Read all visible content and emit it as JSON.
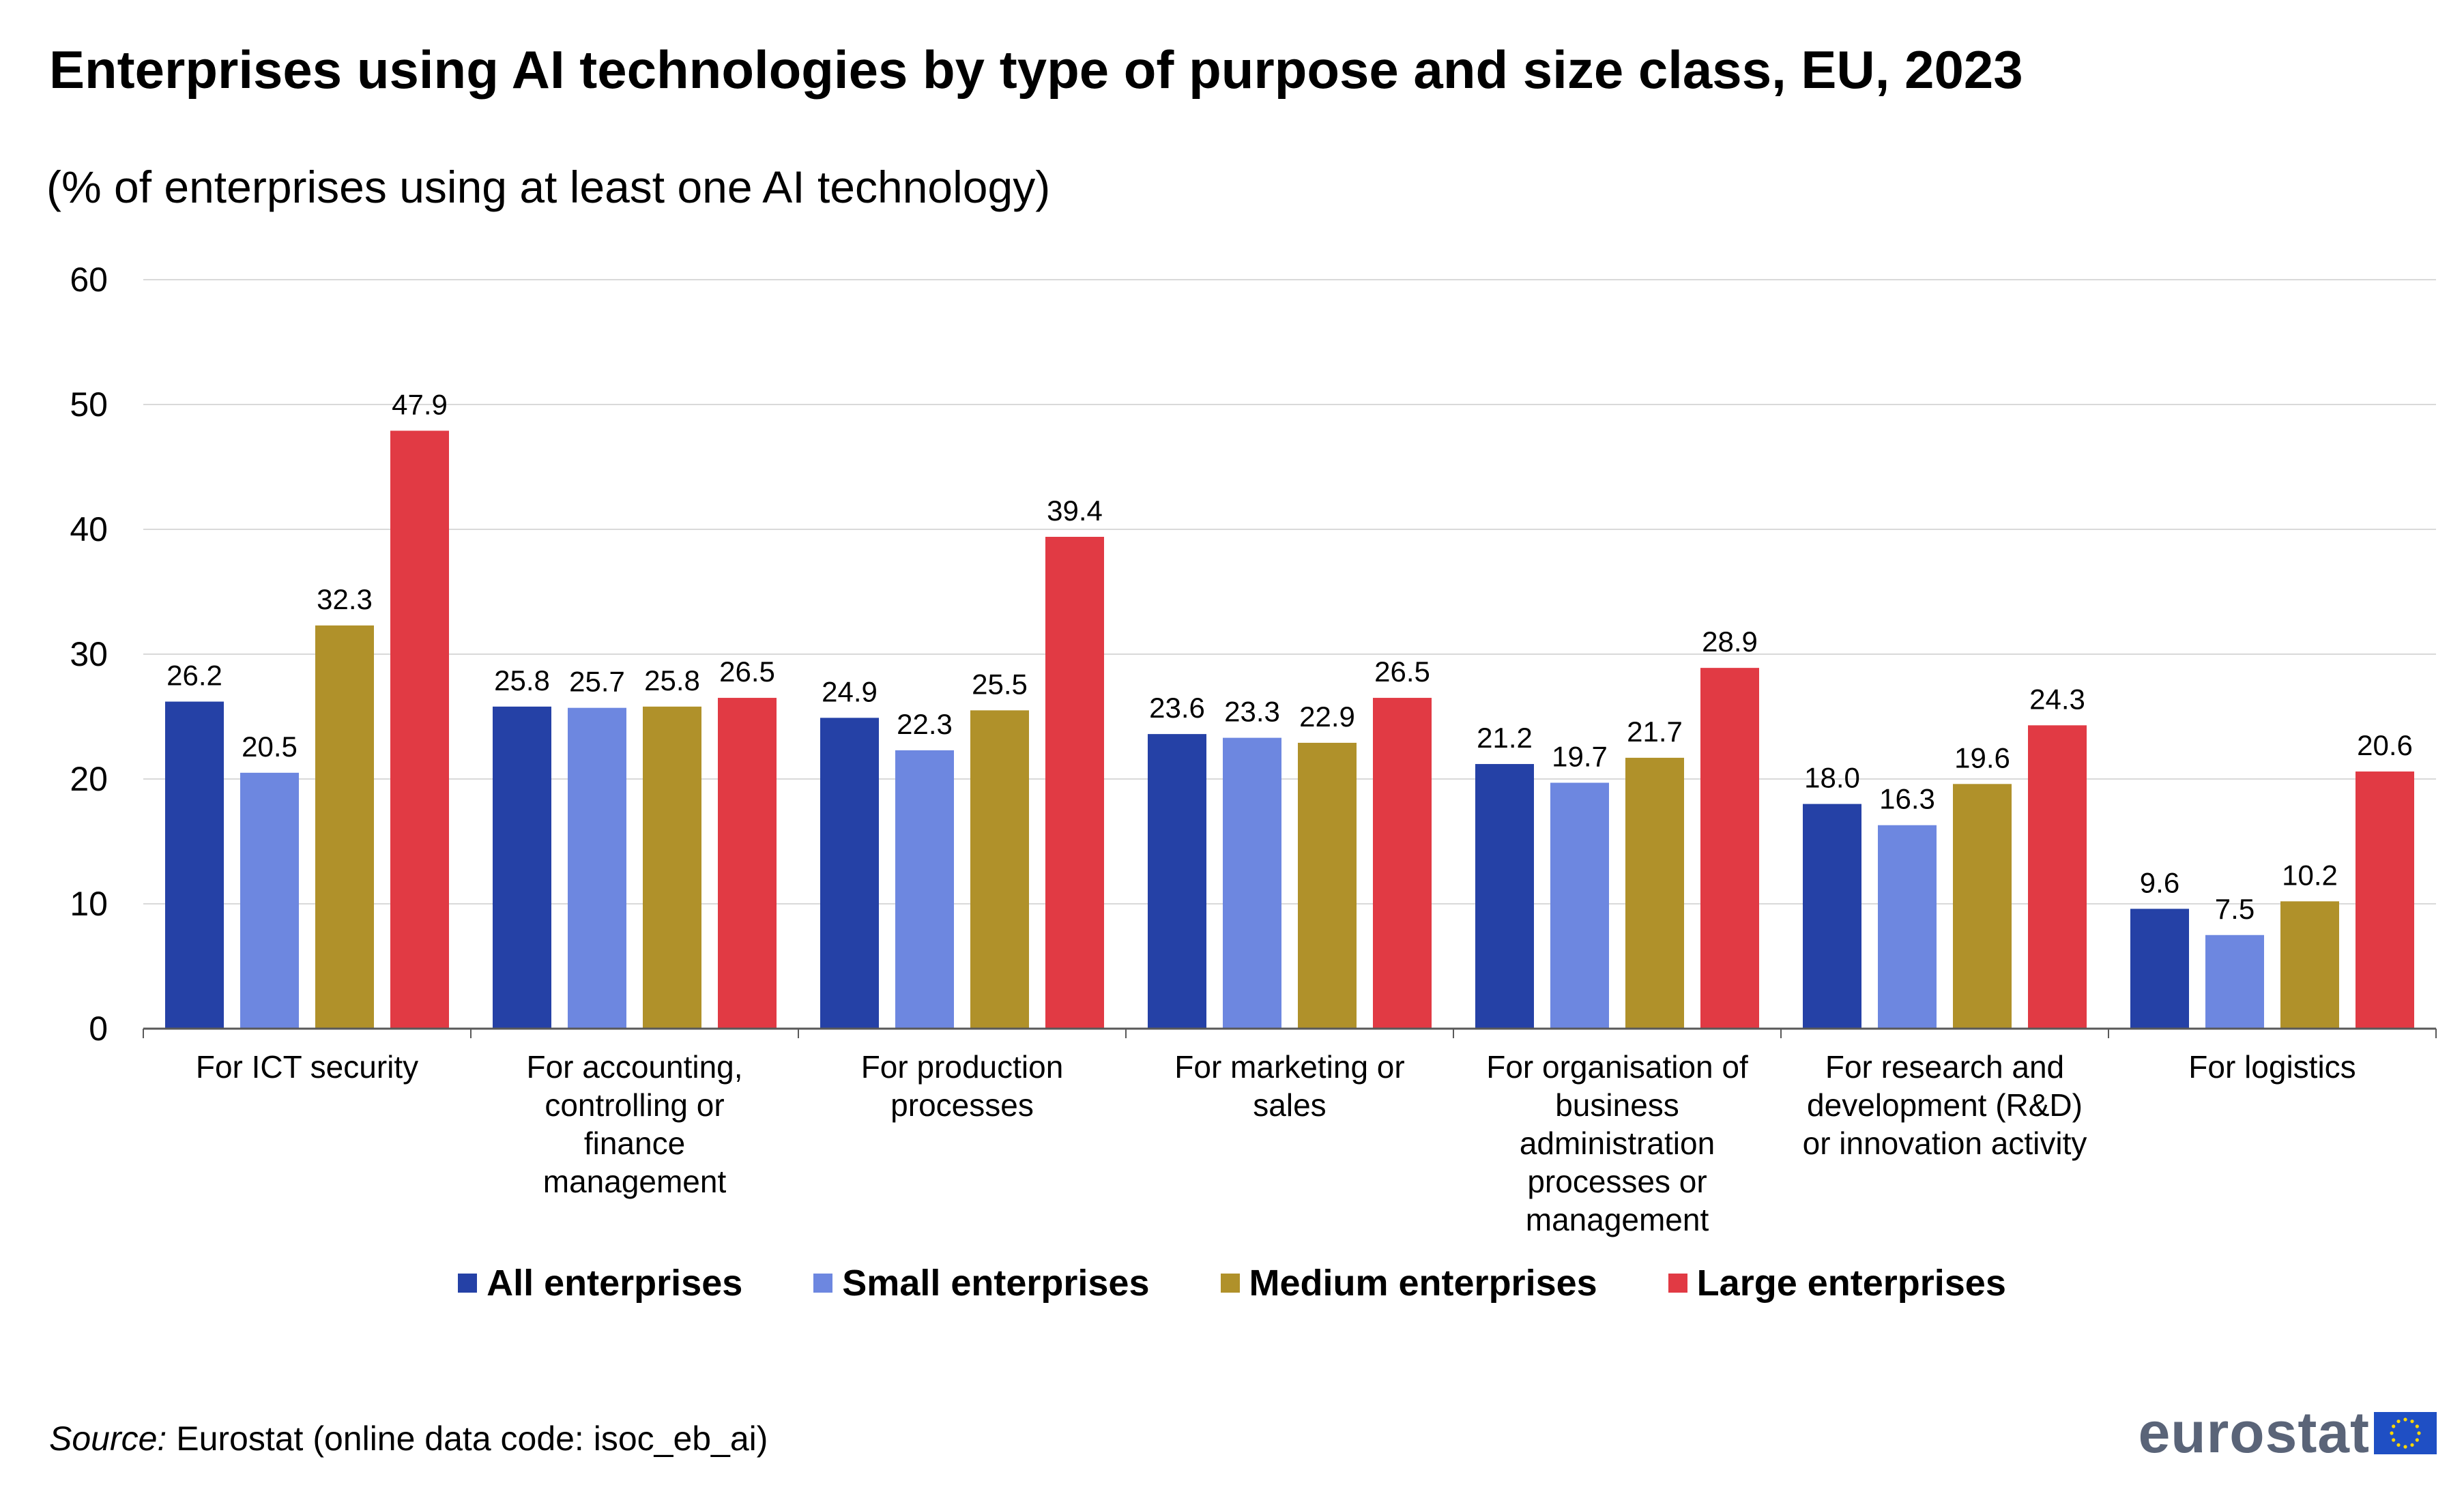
{
  "title": "Enterprises using AI technologies by type of purpose and size class, EU, 2023",
  "subtitle": "(% of enterprises using at least one AI technology)",
  "source": {
    "label": "Source:",
    "text": " Eurostat (online data code: isoc_eb_ai)"
  },
  "logo": {
    "text": "eurostat",
    "flag_icon": "eu-flag-icon"
  },
  "colors": {
    "all": "#2541a6",
    "small": "#6d87e0",
    "medium": "#b0912a",
    "large": "#e13a44",
    "grid": "#d9d9d9",
    "axis": "#595959"
  },
  "chart_data": {
    "type": "bar",
    "title": "Enterprises using AI technologies by type of purpose and size class, EU, 2023",
    "subtitle": "(% of enterprises using at least one AI technology)",
    "xlabel": "",
    "ylabel": "",
    "ylim": [
      0,
      60
    ],
    "yticks": [
      0,
      10,
      20,
      30,
      40,
      50,
      60
    ],
    "grid": true,
    "legend_position": "bottom",
    "categories": [
      [
        "For ICT security"
      ],
      [
        "For accounting,",
        "controlling or",
        "finance",
        "management"
      ],
      [
        "For production",
        "processes"
      ],
      [
        "For marketing or",
        "sales"
      ],
      [
        "For organisation of",
        "business",
        "administration",
        "processes or",
        "management"
      ],
      [
        "For research and",
        "development (R&D)",
        "or innovation activity"
      ],
      [
        "For logistics"
      ]
    ],
    "series": [
      {
        "name": "All enterprises",
        "values": [
          26.2,
          25.8,
          24.9,
          23.6,
          21.2,
          18.0,
          9.6
        ]
      },
      {
        "name": "Small enterprises",
        "values": [
          20.5,
          25.7,
          22.3,
          23.3,
          19.7,
          16.3,
          7.5
        ]
      },
      {
        "name": "Medium enterprises",
        "values": [
          32.3,
          25.8,
          25.5,
          22.9,
          21.7,
          19.6,
          10.2
        ]
      },
      {
        "name": "Large enterprises",
        "values": [
          47.9,
          26.5,
          39.4,
          26.5,
          28.9,
          24.3,
          20.6
        ]
      }
    ]
  }
}
